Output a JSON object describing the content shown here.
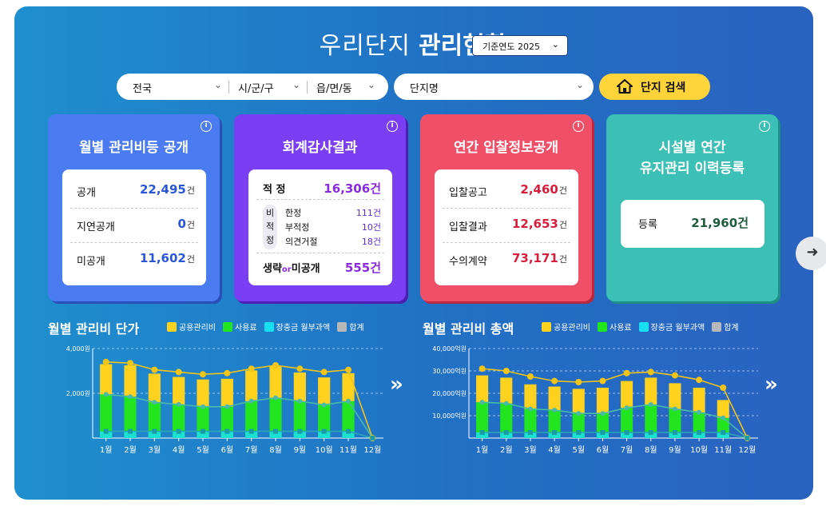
{
  "header": {
    "title_light": "우리단지",
    "title_bold": "관리현황",
    "year_select": "기준연도 2025"
  },
  "search": {
    "region": "전국",
    "city": "시/군/구",
    "town": "읍/면/동",
    "complex_placeholder": "단지명",
    "button": "단지 검색"
  },
  "cards": {
    "monthly": {
      "title": "월별 관리비등 공개",
      "rows": [
        {
          "label": "공개",
          "value": "22,495",
          "unit": "건"
        },
        {
          "label": "지연공개",
          "value": "0",
          "unit": "건"
        },
        {
          "label": "미공개",
          "value": "11,602",
          "unit": "건"
        }
      ]
    },
    "audit": {
      "title": "회계감사결과",
      "proper_label": "적 정",
      "proper_value": "16,306",
      "unit": "건",
      "improper_label": [
        "비",
        "적",
        "정"
      ],
      "sub": [
        {
          "label": "한정",
          "value": "111",
          "unit": "건"
        },
        {
          "label": "부적정",
          "value": "10",
          "unit": "건"
        },
        {
          "label": "의견거절",
          "value": "18",
          "unit": "건"
        }
      ],
      "omit_label_a": "생략",
      "omit_label_or": "or",
      "omit_label_b": "미공개",
      "omit_value": "555"
    },
    "bid": {
      "title": "연간 입찰정보공개",
      "rows": [
        {
          "label": "입찰공고",
          "value": "2,460",
          "unit": "건"
        },
        {
          "label": "입찰결과",
          "value": "12,653",
          "unit": "건"
        },
        {
          "label": "수의계약",
          "value": "73,171",
          "unit": "건"
        }
      ]
    },
    "facility": {
      "title_line1": "시설별 연간",
      "title_line2": "유지관리 이력등록",
      "row": {
        "label": "등록",
        "value": "21,960",
        "unit": "건"
      }
    }
  },
  "legend": [
    "공용관리비",
    "사용료",
    "장충금 월부과액",
    "합계"
  ],
  "colors": {
    "common": "#ffd21f",
    "usage": "#22e51f",
    "ltr": "#19e0f0",
    "total": "#b8b8b8",
    "card1": "#4a7bf0",
    "card2": "#7a3ff2",
    "card3": "#ef4f67",
    "card4": "#3cbfb4"
  },
  "chart_data": [
    {
      "type": "bar",
      "title": "월별 관리비 단가",
      "categories": [
        "1월",
        "2월",
        "3월",
        "4월",
        "5월",
        "6월",
        "7월",
        "8월",
        "9월",
        "10월",
        "11월",
        "12월"
      ],
      "y_ticks": [
        "4,000원",
        "2,000원"
      ],
      "ylim": [
        0,
        4000
      ],
      "series": [
        {
          "name": "공용관리비",
          "values": [
            1350,
            1400,
            1280,
            1230,
            1220,
            1250,
            1370,
            1420,
            1280,
            1230,
            1250,
            0
          ]
        },
        {
          "name": "사용료",
          "values": [
            1950,
            1850,
            1600,
            1500,
            1400,
            1400,
            1650,
            1800,
            1650,
            1480,
            1650,
            0
          ]
        },
        {
          "name": "장충금 월부과액",
          "values": [
            300,
            300,
            300,
            300,
            300,
            300,
            300,
            300,
            300,
            300,
            300,
            0
          ]
        },
        {
          "name": "합계",
          "values": [
            3400,
            3350,
            3050,
            2950,
            2850,
            2900,
            3100,
            3250,
            3100,
            2950,
            3050,
            0
          ]
        }
      ]
    },
    {
      "type": "bar",
      "title": "월별 관리비 총액",
      "categories": [
        "1월",
        "2월",
        "3월",
        "4월",
        "5월",
        "6월",
        "7월",
        "8월",
        "9월",
        "10월",
        "11월",
        "12월"
      ],
      "y_ticks": [
        "40,000억원",
        "30,000억원",
        "20,000억원",
        "10,000억원"
      ],
      "ylim": [
        0,
        40000
      ],
      "series": [
        {
          "name": "공용관리비",
          "values": [
            12000,
            11500,
            11000,
            10500,
            11000,
            11500,
            12000,
            12000,
            11500,
            11000,
            8000,
            0
          ]
        },
        {
          "name": "사용료",
          "values": [
            16000,
            15500,
            13000,
            12500,
            11000,
            11000,
            13500,
            15000,
            13000,
            11500,
            9000,
            0
          ]
        },
        {
          "name": "장충금 월부과액",
          "values": [
            2500,
            2500,
            2500,
            2500,
            2500,
            2500,
            2500,
            2500,
            2500,
            2500,
            2500,
            0
          ]
        },
        {
          "name": "합계",
          "values": [
            31000,
            30000,
            27500,
            25500,
            25000,
            25500,
            29000,
            29500,
            28000,
            26000,
            22500,
            0
          ]
        }
      ]
    }
  ]
}
